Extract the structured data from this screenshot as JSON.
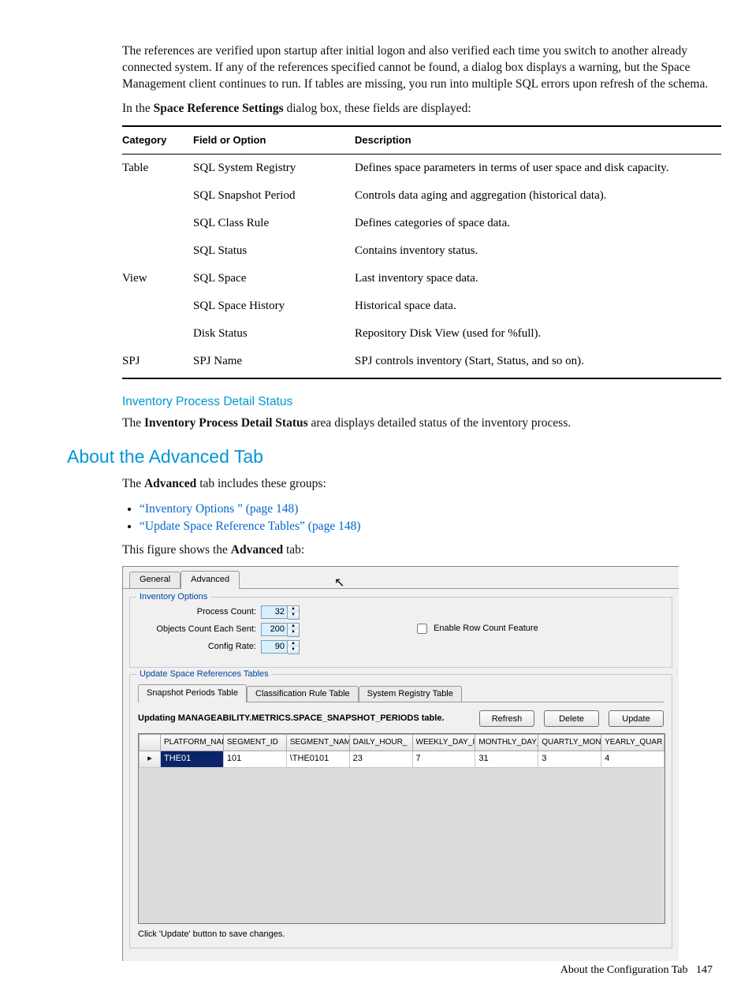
{
  "intro": {
    "p1": "The references are verified upon startup after initial logon and also verified each time you switch to another already connected system. If any of the references specified cannot be found, a dialog box displays a warning, but the Space Management client continues to run. If tables are missing, you run into multiple SQL errors upon refresh of the schema.",
    "p2_pre": "In the ",
    "p2_bold": "Space Reference Settings",
    "p2_post": " dialog box, these fields are displayed:"
  },
  "ref_table": {
    "headers": [
      "Category",
      "Field or Option",
      "Description"
    ],
    "groups": [
      {
        "category": "Table",
        "rows": [
          {
            "field": "SQL System Registry",
            "desc": "Defines space parameters in terms of user space and disk capacity."
          },
          {
            "field": "SQL Snapshot Period",
            "desc": "Controls data aging and aggregation (historical data)."
          },
          {
            "field": "SQL Class Rule",
            "desc": "Defines categories of space data."
          },
          {
            "field": "SQL Status",
            "desc": "Contains inventory status."
          }
        ]
      },
      {
        "category": "View",
        "rows": [
          {
            "field": "SQL Space",
            "desc": "Last inventory space data."
          },
          {
            "field": "SQL Space History",
            "desc": "Historical space data."
          },
          {
            "field": "Disk Status",
            "desc": "Repository Disk View (used for %full)."
          }
        ]
      },
      {
        "category": "SPJ",
        "rows": [
          {
            "field": "SPJ Name",
            "desc": "SPJ controls inventory (Start, Status, and so on)."
          }
        ]
      }
    ]
  },
  "ipds": {
    "heading": "Inventory Process Detail Status",
    "p_pre": "The ",
    "p_bold": "Inventory Process Detail Status",
    "p_post": " area displays detailed status of the inventory process."
  },
  "adv": {
    "heading": "About the Advanced Tab",
    "p_pre": "The ",
    "p_bold": "Advanced",
    "p_post": " tab includes these groups:",
    "bullets": [
      "“Inventory Options ” (page 148)",
      "“Update Space Reference Tables” (page 148)"
    ],
    "fig_pre": "This figure shows the ",
    "fig_bold": "Advanced",
    "fig_post": " tab:"
  },
  "shot": {
    "tabs": {
      "general": "General",
      "advanced": "Advanced"
    },
    "inventory": {
      "title": "Inventory Options",
      "process_count_label": "Process Count:",
      "process_count_value": "32",
      "objects_label": "Objects Count Each Sent:",
      "objects_value": "200",
      "config_label": "Config Rate:",
      "config_value": "90",
      "enable_row_count": "Enable Row Count Feature"
    },
    "update_group": {
      "title": "Update Space References Tables",
      "subtabs": {
        "snapshot": "Snapshot Periods Table",
        "class": "Classification Rule Table",
        "registry": "System Registry Table"
      },
      "updating_label": "Updating MANAGEABILITY.METRICS.SPACE_SNAPSHOT_PERIODS table.",
      "refresh": "Refresh",
      "delete": "Delete",
      "update": "Update",
      "grid_headers": [
        "",
        "PLATFORM_NAI",
        "SEGMENT_ID",
        "SEGMENT_NAM",
        "DAILY_HOUR_",
        "WEEKLY_DAY_I",
        "MONTHLY_DAY_",
        "QUARTLY_MON",
        "YEARLY_QUAR"
      ],
      "grid_row": [
        "▸",
        "THE01",
        "101",
        "\\THE0101",
        "23",
        "7",
        "31",
        "3",
        "4"
      ],
      "hint": "Click 'Update' button to save changes."
    }
  },
  "footer": {
    "text": "About the Configuration Tab",
    "page": "147"
  }
}
